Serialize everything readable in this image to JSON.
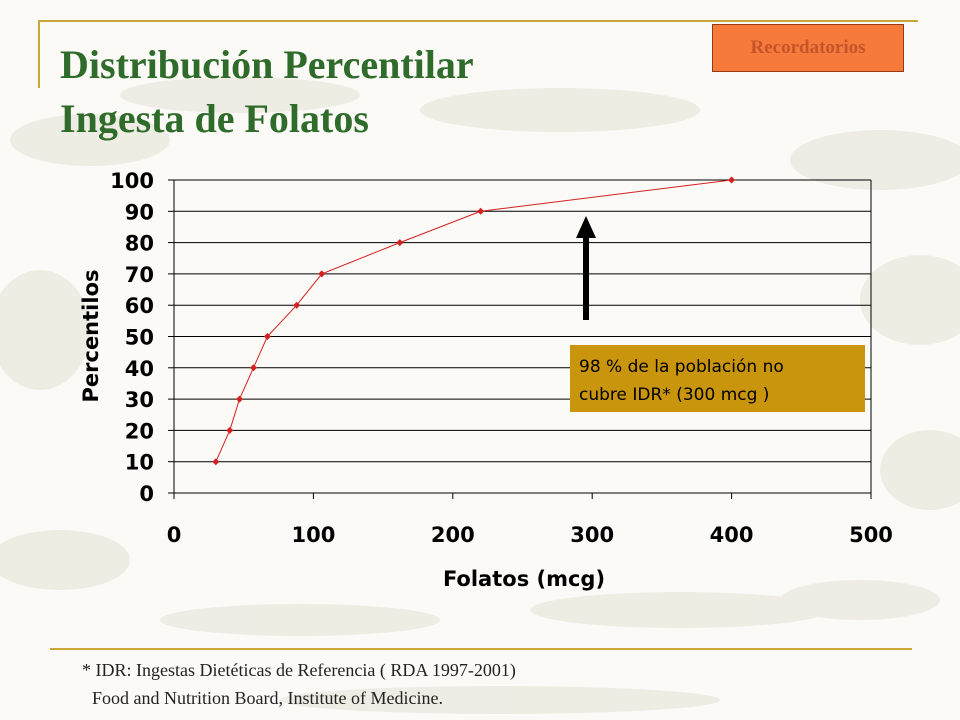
{
  "slide": {
    "title_line1": "Distribución Percentilar",
    "title_line2": "Ingesta de Folatos",
    "nav_button_label": "Recordatorios",
    "footnote_line1": "* IDR: Ingestas Dietéticas de Referencia ( RDA 1997-2001)",
    "footnote_line2": "Food and Nutrition Board, Institute of  Medicine."
  },
  "colors": {
    "title": "#2f6b2a",
    "rule": "#c9a838",
    "button_fill": "#f57a3c",
    "button_text": "#c6532a",
    "series_line": "#d42020",
    "callout_fill": "#c9950c"
  },
  "chart_data": {
    "type": "line",
    "xlabel": "Folatos (mcg)",
    "ylabel": "Percentilos",
    "xlim": [
      0,
      500
    ],
    "ylim": [
      0,
      100
    ],
    "x_ticks": [
      0,
      100,
      200,
      300,
      400,
      500
    ],
    "y_ticks": [
      0,
      10,
      20,
      30,
      40,
      50,
      60,
      70,
      80,
      90,
      100
    ],
    "grid": "horizontal",
    "series": [
      {
        "points": [
          {
            "x": 30,
            "y": 10
          },
          {
            "x": 40,
            "y": 20
          },
          {
            "x": 47,
            "y": 30
          },
          {
            "x": 57,
            "y": 40
          },
          {
            "x": 67,
            "y": 50
          },
          {
            "x": 88,
            "y": 60
          },
          {
            "x": 106,
            "y": 70
          },
          {
            "x": 162,
            "y": 80
          },
          {
            "x": 220,
            "y": 90
          },
          {
            "x": 400,
            "y": 100
          }
        ]
      }
    ],
    "annotation": {
      "text_line1": "98 % de la población no",
      "text_line2": "cubre IDR* (300 mcg )",
      "arrow": "up, near x=295"
    }
  }
}
